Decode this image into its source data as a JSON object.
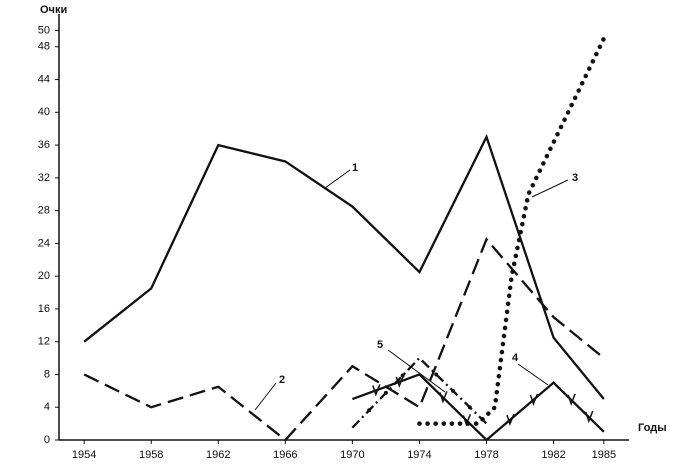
{
  "chart_data": {
    "type": "line",
    "y_label": "Очки",
    "x_label": "Годы",
    "xlim": [
      1952.5,
      1986.5
    ],
    "ylim": [
      0,
      52
    ],
    "xticks": [
      1954,
      1958,
      1962,
      1966,
      1970,
      1974,
      1978,
      1982,
      1985
    ],
    "yticks": [
      0,
      4,
      8,
      12,
      16,
      20,
      24,
      28,
      32,
      36,
      40,
      44,
      48,
      50
    ],
    "grid": false,
    "series": [
      {
        "name": "1",
        "color": "#111111",
        "linestyle": "solid",
        "marker": "none",
        "x": [
          1954,
          1958,
          1962,
          1966,
          1970,
          1974,
          1978,
          1982,
          1985
        ],
        "values": [
          12,
          18.5,
          36,
          34,
          28.5,
          20.5,
          37,
          12.5,
          5
        ]
      },
      {
        "name": "2",
        "color": "#111111",
        "linestyle": "dashed",
        "marker": "none",
        "x": [
          1954,
          1958,
          1962,
          1966,
          1970,
          1974,
          1978,
          1982,
          1985
        ],
        "values": [
          8,
          4,
          6.5,
          0,
          9,
          4,
          24.5,
          15,
          10
        ]
      },
      {
        "name": "3",
        "color": "#111111",
        "linestyle": "dotted",
        "marker": "none",
        "x": [
          1974,
          1977.5,
          1978.5,
          1979.5,
          1980.5,
          1985
        ],
        "values": [
          2,
          2,
          4,
          20,
          30,
          49
        ]
      },
      {
        "name": "4",
        "color": "#111111",
        "linestyle": "solid",
        "marker": "v",
        "x": [
          1970,
          1974,
          1978,
          1982,
          1985
        ],
        "values": [
          5,
          8,
          0,
          7,
          1
        ]
      },
      {
        "name": "5",
        "color": "#111111",
        "linestyle": "dashdot",
        "marker": "dot",
        "x": [
          1970,
          1974,
          1978
        ],
        "values": [
          1.5,
          10,
          2
        ]
      }
    ]
  }
}
